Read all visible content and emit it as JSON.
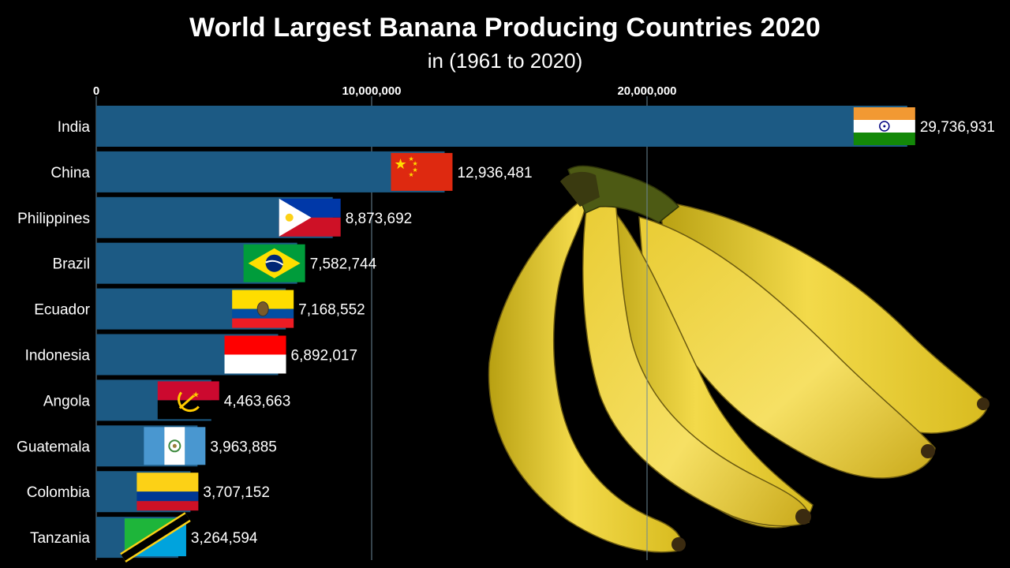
{
  "title": "World Largest Banana Producing Countries 2020",
  "subtitle": "in (1961 to 2020)",
  "colors": {
    "background": "#000000",
    "bar": "#1c5a84",
    "bar_highlight": "#2a6a96",
    "gridline": "#6c8798",
    "text": "#ffffff"
  },
  "chart_data": {
    "type": "bar",
    "orientation": "horizontal",
    "title": "World Largest Banana Producing Countries 2020",
    "subtitle": "in (1961 to 2020)",
    "xlabel": "",
    "ylabel": "",
    "xlim": [
      0,
      30000000
    ],
    "xticks": [
      0,
      10000000,
      20000000
    ],
    "xtick_labels": [
      "0",
      "10,000,000",
      "20,000,000"
    ],
    "grid": true,
    "legend": "none",
    "categories": [
      "India",
      "China",
      "Philippines",
      "Brazil",
      "Ecuador",
      "Indonesia",
      "Angola",
      "Guatemala",
      "Colombia",
      "Tanzania"
    ],
    "values": [
      29736931,
      12936481,
      8873692,
      7582744,
      7168552,
      6892017,
      4463663,
      3963885,
      3707152,
      3264594
    ],
    "value_labels": [
      "29,736,931",
      "12,936,481",
      "8,873,692",
      "7,582,744",
      "7,168,552",
      "6,892,017",
      "4,463,663",
      "3,963,885",
      "3,707,152",
      "3,264,594"
    ],
    "flags": [
      "india-flag",
      "china-flag",
      "philippines-flag",
      "brazil-flag",
      "ecuador-flag",
      "indonesia-flag",
      "angola-flag",
      "guatemala-flag",
      "colombia-flag",
      "tanzania-flag"
    ]
  },
  "decoration": {
    "image": "banana-bunch"
  }
}
